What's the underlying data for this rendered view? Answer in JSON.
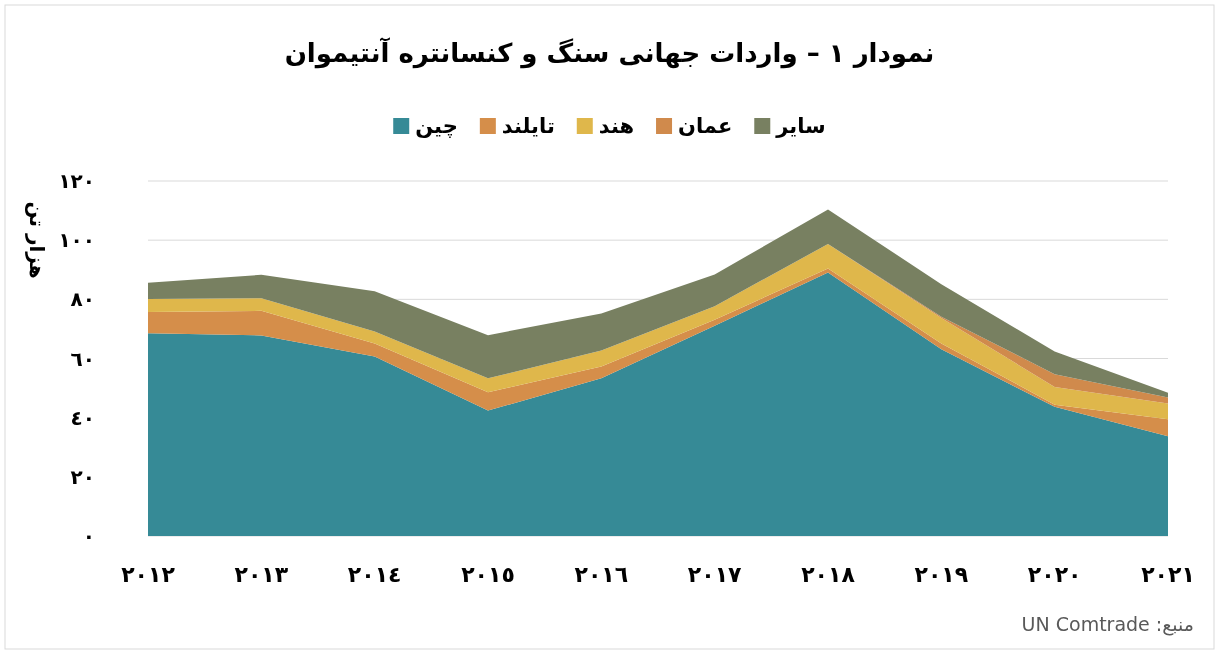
{
  "chart_data": {
    "type": "area",
    "stacked": true,
    "title": "نمودار ١ – واردات جهانی سنگ و کنسانتره آنتیموان",
    "ylabel": "هزار تن",
    "categories": [
      "٢٠١٢",
      "٢٠١٣",
      "٢٠١٤",
      "٢٠١٥",
      "٢٠١٦",
      "٢٠١٧",
      "٢٠١٨",
      "٢٠١٩",
      "٢٠٢٠",
      "٢٠٢١"
    ],
    "series": [
      {
        "name": "چین",
        "color": "#368a96",
        "values": [
          68.5,
          67.8,
          60.7,
          42.4,
          53.3,
          71.1,
          89.1,
          63.1,
          43.7,
          33.7
        ]
      },
      {
        "name": "تایلند",
        "color": "#d58e4a",
        "values": [
          7.2,
          8.3,
          4.4,
          6.2,
          4.0,
          2.0,
          1.3,
          2.0,
          0.7,
          5.8
        ]
      },
      {
        "name": "هند",
        "color": "#dfb74b",
        "values": [
          4.4,
          4.3,
          4.0,
          4.7,
          5.4,
          4.6,
          8.3,
          8.6,
          6.0,
          5.3
        ]
      },
      {
        "name": "عمان",
        "color": "#d08a4c",
        "values": [
          0,
          0,
          0,
          0,
          0,
          0,
          0,
          0.4,
          4.3,
          2.0
        ]
      },
      {
        "name": "سایر",
        "color": "#788061",
        "values": [
          5.5,
          7.9,
          13.6,
          14.6,
          12.5,
          10.7,
          11.7,
          11.0,
          7.7,
          1.6
        ]
      }
    ],
    "ylim": [
      0,
      120
    ],
    "yticks": [
      {
        "value": 0,
        "label": "٠"
      },
      {
        "value": 20,
        "label": "٢٠"
      },
      {
        "value": 40,
        "label": "٤٠"
      },
      {
        "value": 60,
        "label": "٦٠"
      },
      {
        "value": 80,
        "label": "٨٠"
      },
      {
        "value": 100,
        "label": "١٠٠"
      },
      {
        "value": 120,
        "label": "١٢٠"
      }
    ],
    "grid": "y",
    "legend": "top",
    "annotations": [
      "منبع: UN Comtrade"
    ]
  }
}
